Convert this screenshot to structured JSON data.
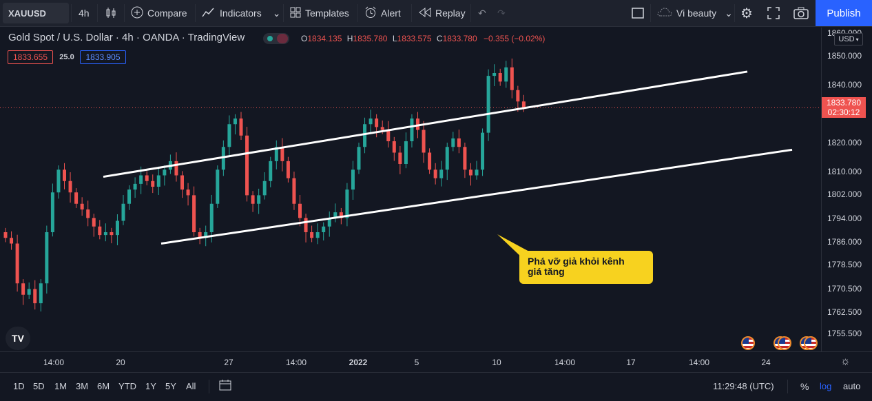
{
  "toolbar": {
    "symbol": "XAUUSD",
    "interval": "4h",
    "compare": "Compare",
    "indicators": "Indicators",
    "templates": "Templates",
    "alert": "Alert",
    "replay": "Replay",
    "layout_name": "Vi beauty",
    "publish": "Publish"
  },
  "legend": {
    "title": "Gold Spot / U.S. Dollar · 4h · OANDA · TradingView",
    "o_label": "O",
    "o_value": "1834.135",
    "h_label": "H",
    "h_value": "1835.780",
    "l_label": "L",
    "l_value": "1833.575",
    "c_label": "C",
    "c_value": "1833.780",
    "change": "−0.355 (−0.02%)",
    "bid": "1833.655",
    "spread": "25.0",
    "ask": "1833.905"
  },
  "price_axis": {
    "currency": "USD",
    "labels": [
      "1860.000",
      "1850.000",
      "1840.000",
      "1820.000",
      "1810.000",
      "1802.000",
      "1794.000",
      "1786.000",
      "1778.500",
      "1770.500",
      "1762.500",
      "1755.500"
    ],
    "current_price": "1833.780",
    "countdown": "02:30:12"
  },
  "time_axis": {
    "labels": [
      "14:00",
      "20",
      "27",
      "14:00",
      "2022",
      "5",
      "10",
      "14:00",
      "17",
      "14:00",
      "24"
    ]
  },
  "annotation": {
    "text_line1": "Phá vỡ giả khỏi kênh",
    "text_line2": "giá tăng"
  },
  "bottom": {
    "ranges": [
      "1D",
      "5D",
      "1M",
      "3M",
      "6M",
      "YTD",
      "1Y",
      "5Y",
      "All"
    ],
    "clock": "11:29:48 (UTC)",
    "percent": "%",
    "log": "log",
    "auto": "auto"
  },
  "colors": {
    "background": "#131722",
    "up": "#26a69a",
    "down": "#ef5350",
    "accent": "#2962ff",
    "callout": "#f7d21f"
  },
  "chart_data": {
    "type": "candlestick",
    "symbol": "XAUUSD",
    "timeframe": "4h",
    "y_range": [
      1750,
      1862
    ],
    "last_close": 1833.78,
    "channel_upper": [
      [
        1809.5,
        1846.5
      ]
    ],
    "channel_lower": [
      [
        1786.0,
        1819.0
      ]
    ],
    "closes": [
      1788,
      1786,
      1772,
      1768,
      1770,
      1765,
      1772,
      1790,
      1804,
      1812,
      1808,
      1804,
      1800,
      1798,
      1795,
      1792,
      1789,
      1790,
      1789,
      1794,
      1800,
      1805,
      1807,
      1810,
      1808,
      1806,
      1810,
      1812,
      1815,
      1810,
      1805,
      1803,
      1790,
      1788,
      1790,
      1800,
      1812,
      1820,
      1828,
      1830,
      1824,
      1803,
      1800,
      1803,
      1808,
      1815,
      1820,
      1815,
      1809,
      1800,
      1795,
      1790,
      1788,
      1790,
      1792,
      1795,
      1797,
      1795,
      1805,
      1812,
      1820,
      1828,
      1830,
      1827,
      1826,
      1822,
      1818,
      1814,
      1822,
      1830,
      1826,
      1818,
      1812,
      1809,
      1812,
      1820,
      1823,
      1820,
      1812,
      1810,
      1812,
      1825,
      1845,
      1846,
      1843,
      1848,
      1840,
      1836,
      1833.78
    ]
  }
}
